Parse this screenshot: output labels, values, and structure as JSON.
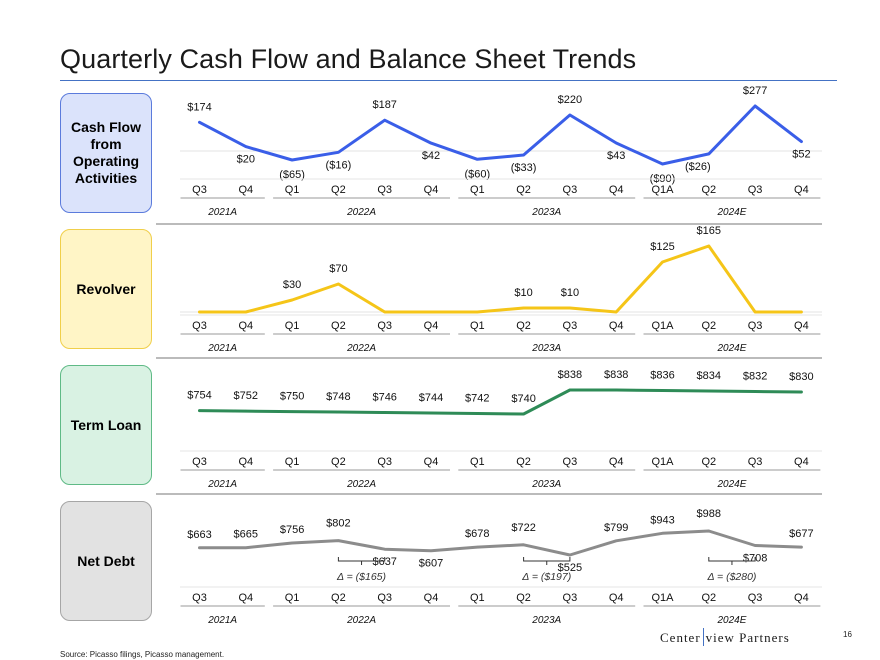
{
  "page": {
    "title": "Quarterly Cash Flow and Balance Sheet Trends",
    "source": "Source:   Picasso filings, Picasso management.",
    "logo": {
      "left": "Center",
      "right": "view Partners"
    },
    "page_number": "16"
  },
  "quarters": [
    "Q3",
    "Q4",
    "Q1",
    "Q2",
    "Q3",
    "Q4",
    "Q1",
    "Q2",
    "Q3",
    "Q4",
    "Q1A",
    "Q2",
    "Q3",
    "Q4"
  ],
  "years": [
    "2021A",
    "2022A",
    "2023A",
    "2024E"
  ],
  "colors": {
    "accent": "#4472c4",
    "cash": "#3a5ee8",
    "revolver": "#f5c518",
    "term": "#2e8b57",
    "netdebt": "#8c8c8c"
  },
  "chart_data": [
    {
      "type": "line",
      "name": "Cash Flow from Operating Activities",
      "label_box": "Cash Flow from Operating Activities",
      "categories": [
        "Q3 2021A",
        "Q4 2021A",
        "Q1 2022A",
        "Q2 2022A",
        "Q3 2022A",
        "Q4 2022A",
        "Q1 2023A",
        "Q2 2023A",
        "Q3 2023A",
        "Q4 2023A",
        "Q1A 2024E",
        "Q2 2024E",
        "Q3 2024E",
        "Q4 2024E"
      ],
      "values": [
        174,
        20,
        -65,
        -16,
        187,
        42,
        -60,
        -33,
        220,
        43,
        -90,
        -26,
        277,
        52
      ],
      "labels": [
        "$174",
        "$20",
        "($65)",
        "($16)",
        "$187",
        "$42",
        "($60)",
        "($33)",
        "$220",
        "$43",
        "($90)",
        "($26)",
        "$277",
        "$52"
      ],
      "annotations": []
    },
    {
      "type": "line",
      "name": "Revolver",
      "label_box": "Revolver",
      "categories": [
        "Q3 2021A",
        "Q4 2021A",
        "Q1 2022A",
        "Q2 2022A",
        "Q3 2022A",
        "Q4 2022A",
        "Q1 2023A",
        "Q2 2023A",
        "Q3 2023A",
        "Q4 2023A",
        "Q1A 2024E",
        "Q2 2024E",
        "Q3 2024E",
        "Q4 2024E"
      ],
      "values": [
        0,
        0,
        30,
        70,
        0,
        0,
        0,
        10,
        10,
        0,
        125,
        165,
        0,
        0
      ],
      "labels": [
        "",
        "",
        "$30",
        "$70",
        "",
        "",
        "",
        "$10",
        "$10",
        "",
        "$125",
        "$165",
        "",
        ""
      ],
      "annotations": []
    },
    {
      "type": "line",
      "name": "Term Loan",
      "label_box": "Term Loan",
      "categories": [
        "Q3 2021A",
        "Q4 2021A",
        "Q1 2022A",
        "Q2 2022A",
        "Q3 2022A",
        "Q4 2022A",
        "Q1 2023A",
        "Q2 2023A",
        "Q3 2023A",
        "Q4 2023A",
        "Q1A 2024E",
        "Q2 2024E",
        "Q3 2024E",
        "Q4 2024E"
      ],
      "values": [
        754,
        752,
        750,
        748,
        746,
        744,
        742,
        740,
        838,
        838,
        836,
        834,
        832,
        830
      ],
      "labels": [
        "$754",
        "$752",
        "$750",
        "$748",
        "$746",
        "$744",
        "$742",
        "$740",
        "$838",
        "$838",
        "$836",
        "$834",
        "$832",
        "$830"
      ],
      "annotations": []
    },
    {
      "type": "line",
      "name": "Net Debt",
      "label_box": "Net Debt",
      "categories": [
        "Q3 2021A",
        "Q4 2021A",
        "Q1 2022A",
        "Q2 2022A",
        "Q3 2022A",
        "Q4 2022A",
        "Q1 2023A",
        "Q2 2023A",
        "Q3 2023A",
        "Q4 2023A",
        "Q1A 2024E",
        "Q2 2024E",
        "Q3 2024E",
        "Q4 2024E"
      ],
      "values": [
        663,
        665,
        756,
        802,
        637,
        607,
        678,
        722,
        525,
        799,
        943,
        988,
        708,
        677
      ],
      "labels": [
        "$663",
        "$665",
        "$756",
        "$802",
        "$637",
        "$607",
        "$678",
        "$722",
        "$525",
        "$799",
        "$943",
        "$988",
        "$708",
        "$677"
      ],
      "annotations": [
        {
          "from": 3,
          "to": 4,
          "text": "Δ = ($165)"
        },
        {
          "from": 7,
          "to": 8,
          "text": "Δ = ($197)"
        },
        {
          "from": 11,
          "to": 12,
          "text": "Δ = ($280)"
        }
      ]
    }
  ]
}
